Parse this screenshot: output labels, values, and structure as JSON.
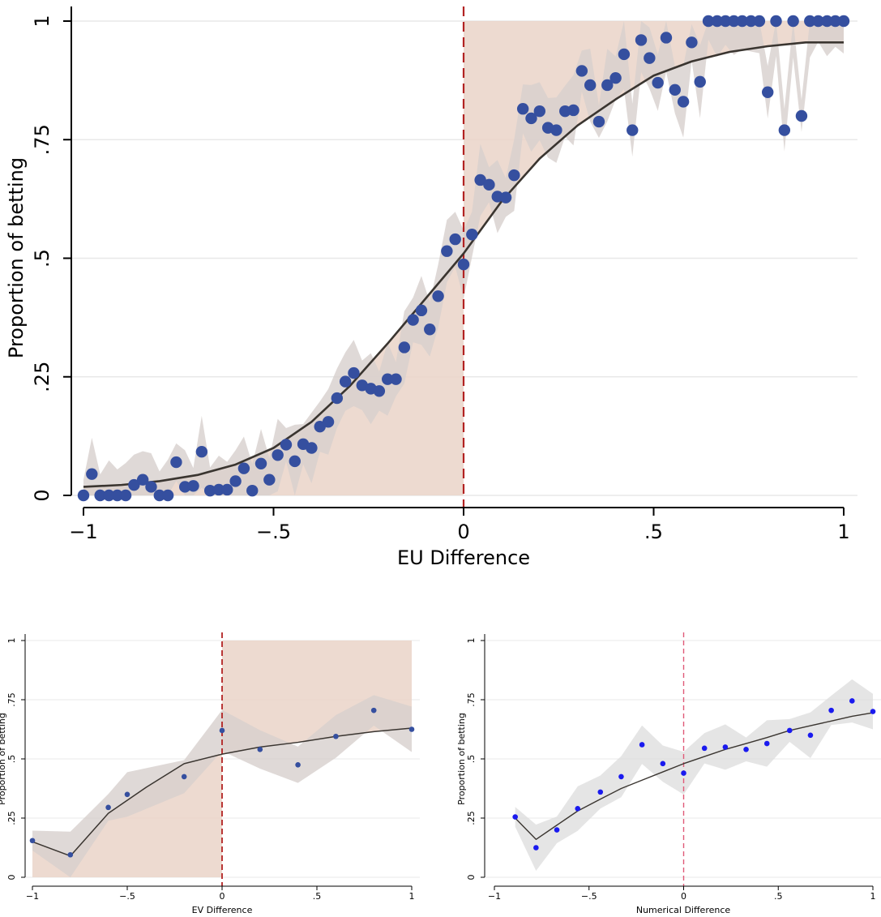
{
  "colors": {
    "shade_positive": "#ead3c8",
    "band_gray": "#dcdcdc",
    "band_brown": "#c9a89a",
    "point_blue": "#354f9f",
    "point_bright_blue": "#1a1aef",
    "fit_line": "#3a3530",
    "ref_line": "#b22222",
    "ref_line_light": "#e05a78",
    "grid": "#e8e8e8"
  },
  "chart_data": [
    {
      "type": "scatter",
      "title": "",
      "xlabel": "EU Difference",
      "ylabel": "Proportion of betting",
      "xlim": [
        -1,
        1
      ],
      "ylim": [
        0,
        1
      ],
      "x_ticks": [
        "−1",
        "−.5",
        "0",
        ".5",
        "1"
      ],
      "x_tick_values": [
        -1,
        -0.5,
        0,
        0.5,
        1
      ],
      "y_ticks": [
        "0",
        ".25",
        ".5",
        ".75",
        "1"
      ],
      "y_tick_values": [
        0,
        0.25,
        0.5,
        0.75,
        1
      ],
      "grid": true,
      "reference_line_x": 0,
      "shaded_region": "below fit for x<0, above fit for x>0",
      "series": [
        {
          "x": [
            -1,
            -0.978,
            -0.956,
            -0.933,
            -0.911,
            -0.889,
            -0.867,
            -0.844,
            -0.822,
            -0.8,
            -0.778,
            -0.756,
            -0.733,
            -0.711,
            -0.689,
            -0.667,
            -0.644,
            -0.622,
            -0.6,
            -0.578,
            -0.556,
            -0.533,
            -0.511,
            -0.489,
            -0.467,
            -0.444,
            -0.422,
            -0.4,
            -0.378,
            -0.356,
            -0.333,
            -0.311,
            -0.289,
            -0.267,
            -0.244,
            -0.222,
            -0.2,
            -0.178,
            -0.156,
            -0.133,
            -0.111,
            -0.089,
            -0.067,
            -0.044,
            -0.022,
            0,
            0.022,
            0.044,
            0.067,
            0.089,
            0.111,
            0.133,
            0.156,
            0.178,
            0.2,
            0.222,
            0.244,
            0.267,
            0.289,
            0.311,
            0.333,
            0.356,
            0.378,
            0.4,
            0.422,
            0.444,
            0.467,
            0.489,
            0.511,
            0.533,
            0.556,
            0.578,
            0.6,
            0.622,
            0.644,
            0.667,
            0.689,
            0.711,
            0.733,
            0.756,
            0.778,
            0.8,
            0.822,
            0.844,
            0.867,
            0.889,
            0.911,
            0.933,
            0.956,
            0.978,
            1
          ],
          "y": [
            0,
            0.045,
            0,
            0,
            0,
            0,
            0.022,
            0.033,
            0.018,
            0,
            0,
            0.07,
            0.018,
            0.02,
            0.092,
            0.01,
            0.012,
            0.012,
            0.03,
            0.057,
            0.01,
            0.067,
            0.033,
            0.085,
            0.107,
            0.072,
            0.108,
            0.1,
            0.145,
            0.155,
            0.205,
            0.24,
            0.258,
            0.232,
            0.225,
            0.22,
            0.245,
            0.245,
            0.312,
            0.37,
            0.39,
            0.35,
            0.42,
            0.515,
            0.54,
            0.487,
            0.55,
            0.665,
            0.655,
            0.63,
            0.628,
            0.675,
            0.815,
            0.795,
            0.81,
            0.775,
            0.77,
            0.81,
            0.812,
            0.895,
            0.865,
            0.788,
            0.865,
            0.88,
            0.93,
            0.77,
            0.96,
            0.922,
            0.87,
            0.965,
            0.855,
            0.83,
            0.955,
            0.872,
            1,
            1,
            1,
            1,
            1,
            1,
            1,
            0.85,
            1,
            0.77,
            1,
            0.8,
            1,
            1,
            1,
            1,
            1
          ]
        }
      ],
      "fit": {
        "x": [
          -1,
          -0.9,
          -0.8,
          -0.7,
          -0.6,
          -0.5,
          -0.4,
          -0.3,
          -0.2,
          -0.1,
          0,
          0.1,
          0.2,
          0.3,
          0.4,
          0.5,
          0.6,
          0.7,
          0.8,
          0.9,
          1
        ],
        "y": [
          0.018,
          0.022,
          0.03,
          0.043,
          0.065,
          0.1,
          0.155,
          0.23,
          0.32,
          0.415,
          0.51,
          0.62,
          0.71,
          0.78,
          0.835,
          0.885,
          0.915,
          0.935,
          0.947,
          0.955,
          0.955
        ]
      }
    },
    {
      "type": "scatter",
      "title": "",
      "xlabel": "EV Difference",
      "ylabel": "Proportion of betting",
      "xlim": [
        -1,
        1
      ],
      "ylim": [
        0,
        1
      ],
      "x_ticks": [
        "−1",
        "−.5",
        "0",
        ".5",
        "1"
      ],
      "x_tick_values": [
        -1,
        -0.5,
        0,
        0.5,
        1
      ],
      "y_ticks": [
        "0",
        ".25",
        ".5",
        ".75",
        "1"
      ],
      "y_tick_values": [
        0,
        0.25,
        0.5,
        0.75,
        1
      ],
      "grid": true,
      "reference_line_x": 0,
      "shaded_region": "below fit for x<0, above fit for x>0",
      "series": [
        {
          "x": [
            -1,
            -0.8,
            -0.6,
            -0.5,
            -0.2,
            0,
            0.2,
            0.4,
            0.6,
            0.8,
            1
          ],
          "y": [
            0.155,
            0.095,
            0.295,
            0.35,
            0.425,
            0.62,
            0.54,
            0.475,
            0.595,
            0.705,
            0.625
          ]
        }
      ],
      "fit": {
        "x": [
          -1,
          -0.8,
          -0.6,
          -0.4,
          -0.2,
          0,
          0.2,
          0.4,
          0.6,
          0.8,
          1
        ],
        "y": [
          0.15,
          0.09,
          0.27,
          0.38,
          0.48,
          0.52,
          0.55,
          0.57,
          0.595,
          0.615,
          0.63
        ]
      }
    },
    {
      "type": "scatter",
      "title": "",
      "xlabel": "Numerical Difference",
      "ylabel": "Proportion of betting",
      "xlim": [
        -1,
        1
      ],
      "ylim": [
        0,
        1
      ],
      "x_ticks": [
        "−1",
        "−.5",
        "0",
        ".5",
        "1"
      ],
      "x_tick_values": [
        -1,
        -0.5,
        0,
        0.5,
        1
      ],
      "y_ticks": [
        "0",
        ".25",
        ".5",
        ".75",
        "1"
      ],
      "y_tick_values": [
        0,
        0.25,
        0.5,
        0.75,
        1
      ],
      "grid": true,
      "reference_line_x": 0,
      "series": [
        {
          "x": [
            -0.89,
            -0.78,
            -0.67,
            -0.56,
            -0.44,
            -0.33,
            -0.22,
            -0.11,
            0,
            0.11,
            0.22,
            0.33,
            0.44,
            0.56,
            0.67,
            0.78,
            0.89,
            1
          ],
          "y": [
            0.255,
            0.125,
            0.2,
            0.29,
            0.36,
            0.425,
            0.56,
            0.48,
            0.44,
            0.545,
            0.55,
            0.54,
            0.565,
            0.62,
            0.6,
            0.705,
            0.745,
            0.7
          ]
        }
      ],
      "fit": {
        "x": [
          -0.89,
          -0.78,
          -0.67,
          -0.56,
          -0.44,
          -0.33,
          -0.22,
          -0.11,
          0,
          0.11,
          0.22,
          0.33,
          0.44,
          0.56,
          0.67,
          0.78,
          0.89,
          1
        ],
        "y": [
          0.25,
          0.16,
          0.22,
          0.28,
          0.33,
          0.375,
          0.41,
          0.445,
          0.48,
          0.51,
          0.54,
          0.565,
          0.59,
          0.62,
          0.64,
          0.66,
          0.68,
          0.695
        ]
      }
    }
  ]
}
